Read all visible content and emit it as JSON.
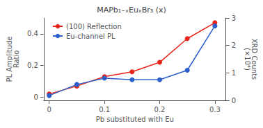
{
  "chart_data": {
    "type": "line",
    "title": "MAPb₁₋ₓEuₓBr₃ (x)",
    "xlabel": "Pb substituted with Eu",
    "ylabel": "PL Amplitude\nRatio",
    "y2label": "XRD Counts\n(×10⁴)",
    "x": [
      0,
      0.05,
      0.1,
      0.15,
      0.2,
      0.25,
      0.3
    ],
    "series": [
      {
        "name": "(100) Reflection",
        "color": "#e8231a",
        "marker": "circle",
        "line_style": "solid",
        "values": [
          0.02,
          0.07,
          0.13,
          0.16,
          0.22,
          0.37,
          0.47
        ]
      },
      {
        "name": "Eu-channel PL",
        "color": "#2b5fcc",
        "marker": "circle",
        "line_style": "solid",
        "values": [
          0.01,
          0.08,
          0.12,
          0.11,
          0.11,
          0.17,
          0.45
        ]
      }
    ],
    "xlim": [
      -0.01,
      0.32
    ],
    "xticks": [
      0,
      0.1,
      0.2,
      0.3
    ],
    "ylim": [
      -0.02,
      0.5
    ],
    "yticks": [
      0,
      0.2,
      0.4
    ],
    "y2lim": [
      0,
      3
    ],
    "y2ticks": [
      0,
      1,
      2,
      3
    ],
    "grid": false,
    "legend": "upper left"
  }
}
